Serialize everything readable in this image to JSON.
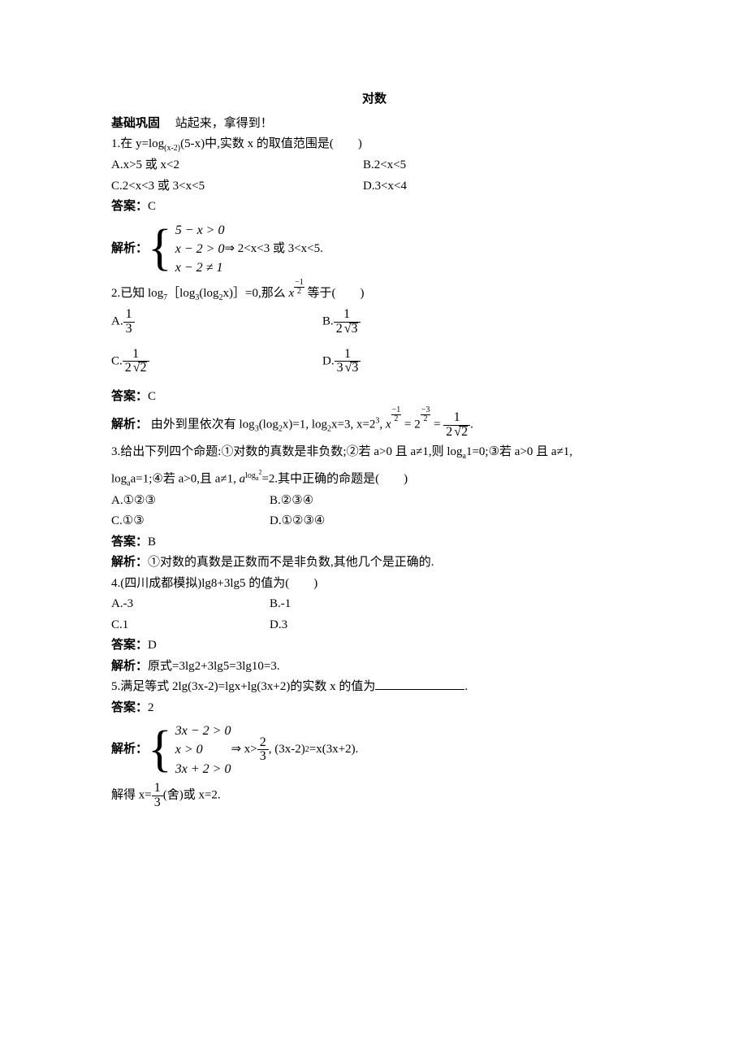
{
  "title": "对数",
  "header": {
    "label": "基础巩固",
    "tag": "站起来，拿得到！"
  },
  "q1": {
    "stem_prefix": "1.在 y=log",
    "stem_sub": "(x-2)",
    "stem_suffix": "(5-x)中,实数 x 的取值范围是(　　)",
    "A": "A.x>5 或 x<2",
    "B": "B.2<x<5",
    "C": "C.2<x<3 或 3<x<5",
    "D": "D.3<x<4",
    "ans_label": "答案：",
    "ans": "C",
    "anal_label": "解析：",
    "brace1": "5 − x > 0",
    "brace2": "x − 2 > 0",
    "brace3": "x − 2 ≠ 1",
    "after": " ⇒ 2<x<3 或 3<x<5."
  },
  "q2": {
    "stem_a": "2.已知 log",
    "sub7": "7",
    "stem_b": "［log",
    "sub3": "3",
    "stem_c": "(log",
    "sub2": "2",
    "stem_d": "x)］=0,那么 ",
    "x": "x",
    "exp_neg": "−",
    "exp_num": "1",
    "exp_den": "2",
    "stem_e": " 等于(　　)",
    "A_label": "A.",
    "A_num": "1",
    "A_den": "3",
    "B_label": "B.",
    "B_num": "1",
    "B_den_pre": "2",
    "B_den_rad": "3",
    "C_label": "C.",
    "C_num": "1",
    "C_den_pre": "2",
    "C_den_rad": "2",
    "D_label": "D.",
    "D_num": "1",
    "D_den_pre": "3",
    "D_den_rad": "3",
    "ans_label": "答案：",
    "ans": "C",
    "anal_label": "解析：",
    "anal_a": "由外到里依次有 log",
    "anal_b": "(log",
    "anal_c": "x)=1, log",
    "anal_d": "x=3, x=2",
    "anal_sup3": "3",
    "anal_e": ", ",
    "eq_eq": " = ",
    "exp2_neg": "−",
    "exp2_num": "3",
    "exp2_den": "2",
    "res_num": "1",
    "res_den_pre": "2",
    "res_den_rad": "2",
    "period": "."
  },
  "q3": {
    "stem_a": "3.给出下列四个命题:①对数的真数是非负数;②若 a>0 且 a≠1,则 log",
    "suba": "a",
    "stem_b": "1=0;③若 a>0 且 a≠1,",
    "stem_c": "log",
    "stem_d": "a=1;④若 a>0,且 a≠1, ",
    "a_it": "a",
    "exp_log": "log",
    "exp_a": "a",
    "exp_2": "2",
    "stem_e": "=2.其中正确的命题是(　　)",
    "A": "A.①②③",
    "B": "B.②③④",
    "C": "C.①③",
    "D": "D.①②③④",
    "ans_label": "答案：",
    "ans": "B",
    "anal_label": "解析：",
    "anal": "①对数的真数是正数而不是非负数,其他几个是正确的."
  },
  "q4": {
    "stem": "4.(四川成都模拟)lg8+3lg5 的值为(　　)",
    "A": "A.-3",
    "B": "B.-1",
    "C": "C.1",
    "D": "D.3",
    "ans_label": "答案：",
    "ans": "D",
    "anal_label": "解析：",
    "anal": "原式=3lg2+3lg5=3lg10=3."
  },
  "q5": {
    "stem": "5.满足等式 2lg(3x-2)=lgx+lg(3x+2)的实数 x 的值为",
    "stem_end": ".",
    "ans_label": "答案：",
    "ans": "2",
    "anal_label": "解析：",
    "brace1": "3x − 2 > 0",
    "brace2": "x > 0",
    "brace3": "3x + 2 > 0",
    "after_a": " ⇒ x>",
    "fr_num": "2",
    "fr_den": "3",
    "after_b": ", (3x-2)",
    "sq": "2",
    "after_c": "=x(3x+2).",
    "tail_a": "解得 x=",
    "tail_num": "1",
    "tail_den": "3",
    "tail_b": "(舍)或 x=2."
  }
}
